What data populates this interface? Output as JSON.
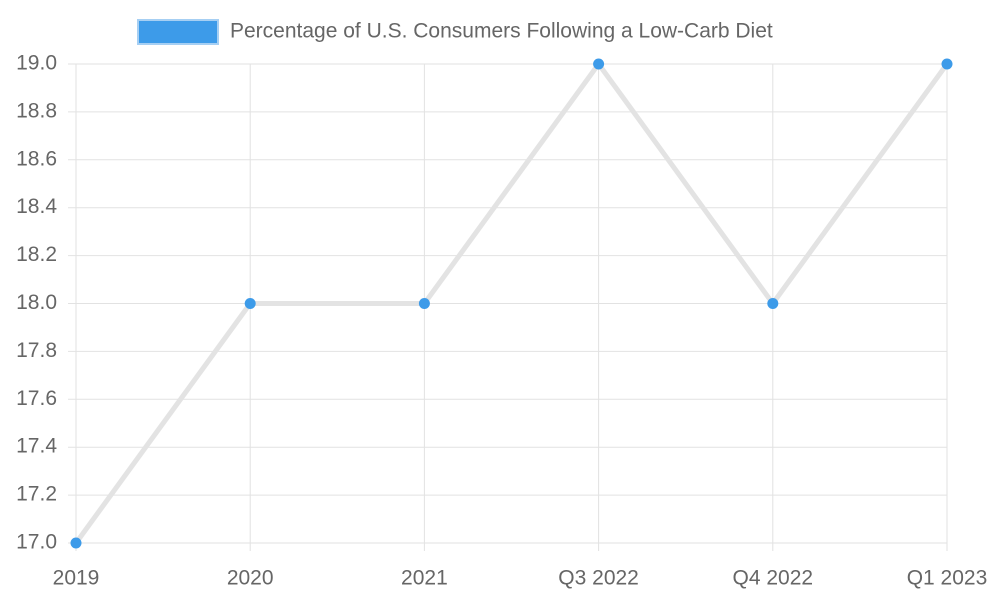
{
  "chart_data": {
    "type": "line",
    "categories": [
      "2019",
      "2020",
      "2021",
      "Q3 2022",
      "Q4 2022",
      "Q1 2023"
    ],
    "series": [
      {
        "name": "Percentage of U.S. Consumers Following a Low-Carb Diet",
        "color": "#3d9be9",
        "line_color": "#e3e3e3",
        "values": [
          17,
          18,
          18,
          19,
          18,
          19
        ]
      }
    ],
    "ylim": [
      17,
      19
    ],
    "yticks": [
      {
        "value": 17,
        "label": "17.0"
      },
      17.2,
      17.4,
      17.6,
      17.8,
      {
        "value": 18,
        "label": "18.0"
      },
      18.2,
      18.4,
      18.6,
      18.8,
      {
        "value": 19,
        "label": "19.0"
      }
    ],
    "grid": true,
    "legend": "top"
  }
}
